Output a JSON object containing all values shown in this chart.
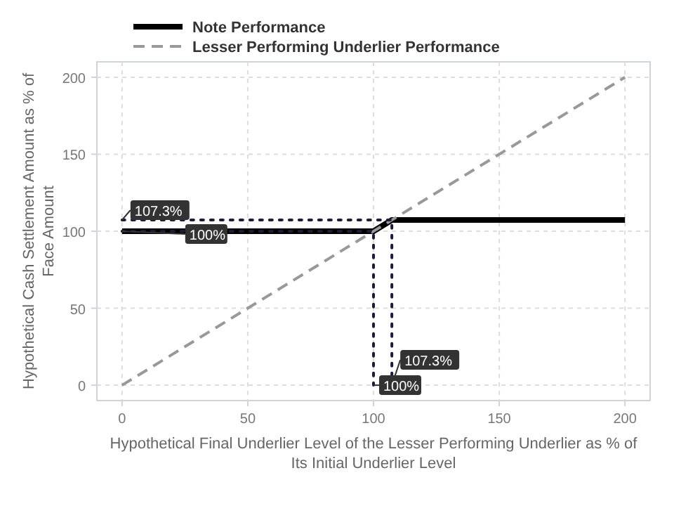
{
  "chart_data": {
    "type": "line",
    "xlabel": "Hypothetical Final Underlier Level of the Lesser Performing Underlier as % of Its Initial Underlier Level",
    "ylabel": "Hypothetical Cash Settlement Amount as % of Face Amount",
    "xlim": [
      -10,
      210
    ],
    "ylim": [
      -10,
      210
    ],
    "xticks": [
      0,
      50,
      100,
      150,
      200
    ],
    "yticks": [
      0,
      50,
      100,
      150,
      200
    ],
    "grid": true,
    "legend": "top left",
    "series": [
      {
        "name": "Note Performance",
        "color": "#000000",
        "line_style": "solid",
        "x": [
          0,
          100,
          107.3,
          200
        ],
        "values": [
          100,
          100,
          107.3,
          107.3
        ]
      },
      {
        "name": "Lesser Performing Underlier Performance",
        "color": "#999999",
        "line_style": "dashed",
        "x": [
          0,
          200
        ],
        "values": [
          0,
          200
        ]
      },
      {
        "color": "#1c1c3a",
        "line_style": "dotted",
        "x": [
          0,
          107.3,
          107.3
        ],
        "values": [
          107.3,
          107.3,
          0
        ]
      },
      {
        "color": "#1c1c3a",
        "line_style": "dotted",
        "x": [
          0,
          100,
          100
        ],
        "values": [
          100,
          100,
          0
        ]
      }
    ],
    "annotations": [
      {
        "text": "107.3%",
        "x": 0,
        "y": 107.3
      },
      {
        "text": "100%",
        "x": 0,
        "y": 100
      },
      {
        "text": "107.3%",
        "x": 107.3,
        "y": 0
      },
      {
        "text": "100%",
        "x": 100,
        "y": 0
      }
    ]
  }
}
